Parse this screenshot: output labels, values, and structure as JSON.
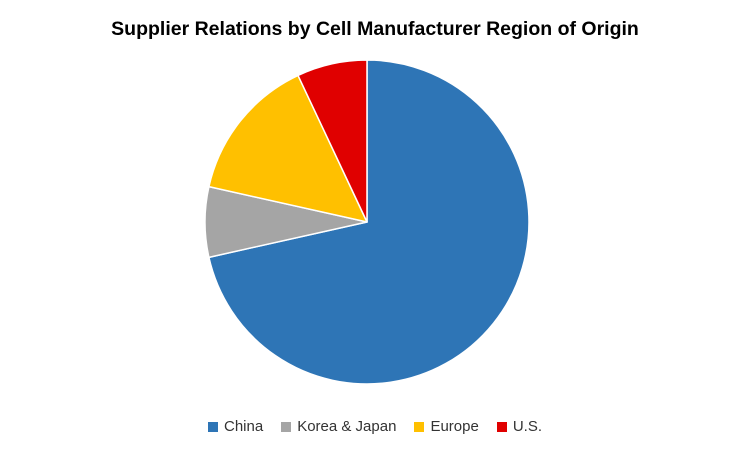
{
  "chart_data": {
    "type": "pie",
    "title": "Supplier Relations by Cell Manufacturer Region of Origin",
    "categories": [
      "China",
      "Korea & Japan",
      "Europe",
      "U.S."
    ],
    "values": [
      71.5,
      7,
      14.5,
      7
    ],
    "colors": [
      "#2E75B6",
      "#A5A5A5",
      "#FFC000",
      "#E00000"
    ],
    "start_angle_deg": 0,
    "direction": "clockwise",
    "legend_position": "bottom"
  }
}
